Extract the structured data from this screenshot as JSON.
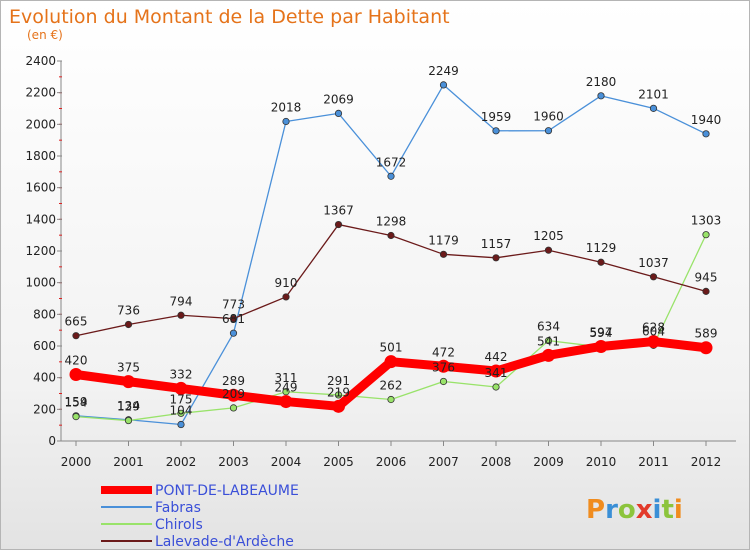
{
  "chart_data": {
    "type": "line",
    "title": "Evolution du Montant de la Dette par Habitant",
    "subtitle": "(en €)",
    "xlabel": "",
    "ylabel": "",
    "categories": [
      "2000",
      "2001",
      "2002",
      "2003",
      "2004",
      "2005",
      "2006",
      "2007",
      "2008",
      "2009",
      "2010",
      "2011",
      "2012"
    ],
    "ylim": [
      0,
      2400
    ],
    "yticks": [
      0,
      200,
      400,
      600,
      800,
      1000,
      1200,
      1400,
      1600,
      1800,
      2000,
      2200,
      2400
    ],
    "grid": false,
    "legend_position": "bottom-left",
    "series": [
      {
        "name": "PONT-DE-LABEAUME",
        "color": "#ff0000",
        "emphasis": true,
        "values": [
          420,
          375,
          332,
          289,
          249,
          219,
          501,
          472,
          442,
          541,
          597,
          628,
          589
        ]
      },
      {
        "name": "Fabras",
        "color": "#4a90d9",
        "emphasis": false,
        "values": [
          159,
          134,
          104,
          681,
          2018,
          2069,
          1672,
          2249,
          1959,
          1960,
          2180,
          2101,
          1940
        ]
      },
      {
        "name": "Chirols",
        "color": "#99e36a",
        "emphasis": false,
        "values": [
          154,
          129,
          175,
          209,
          311,
          291,
          262,
          376,
          341,
          634,
          594,
          604,
          1303
        ]
      },
      {
        "name": "Lalevade-d'Ardèche",
        "color": "#6b1a1a",
        "emphasis": false,
        "values": [
          665,
          736,
          794,
          773,
          910,
          1367,
          1298,
          1179,
          1157,
          1205,
          1129,
          1037,
          945
        ]
      }
    ]
  },
  "watermark": "Proxiti"
}
